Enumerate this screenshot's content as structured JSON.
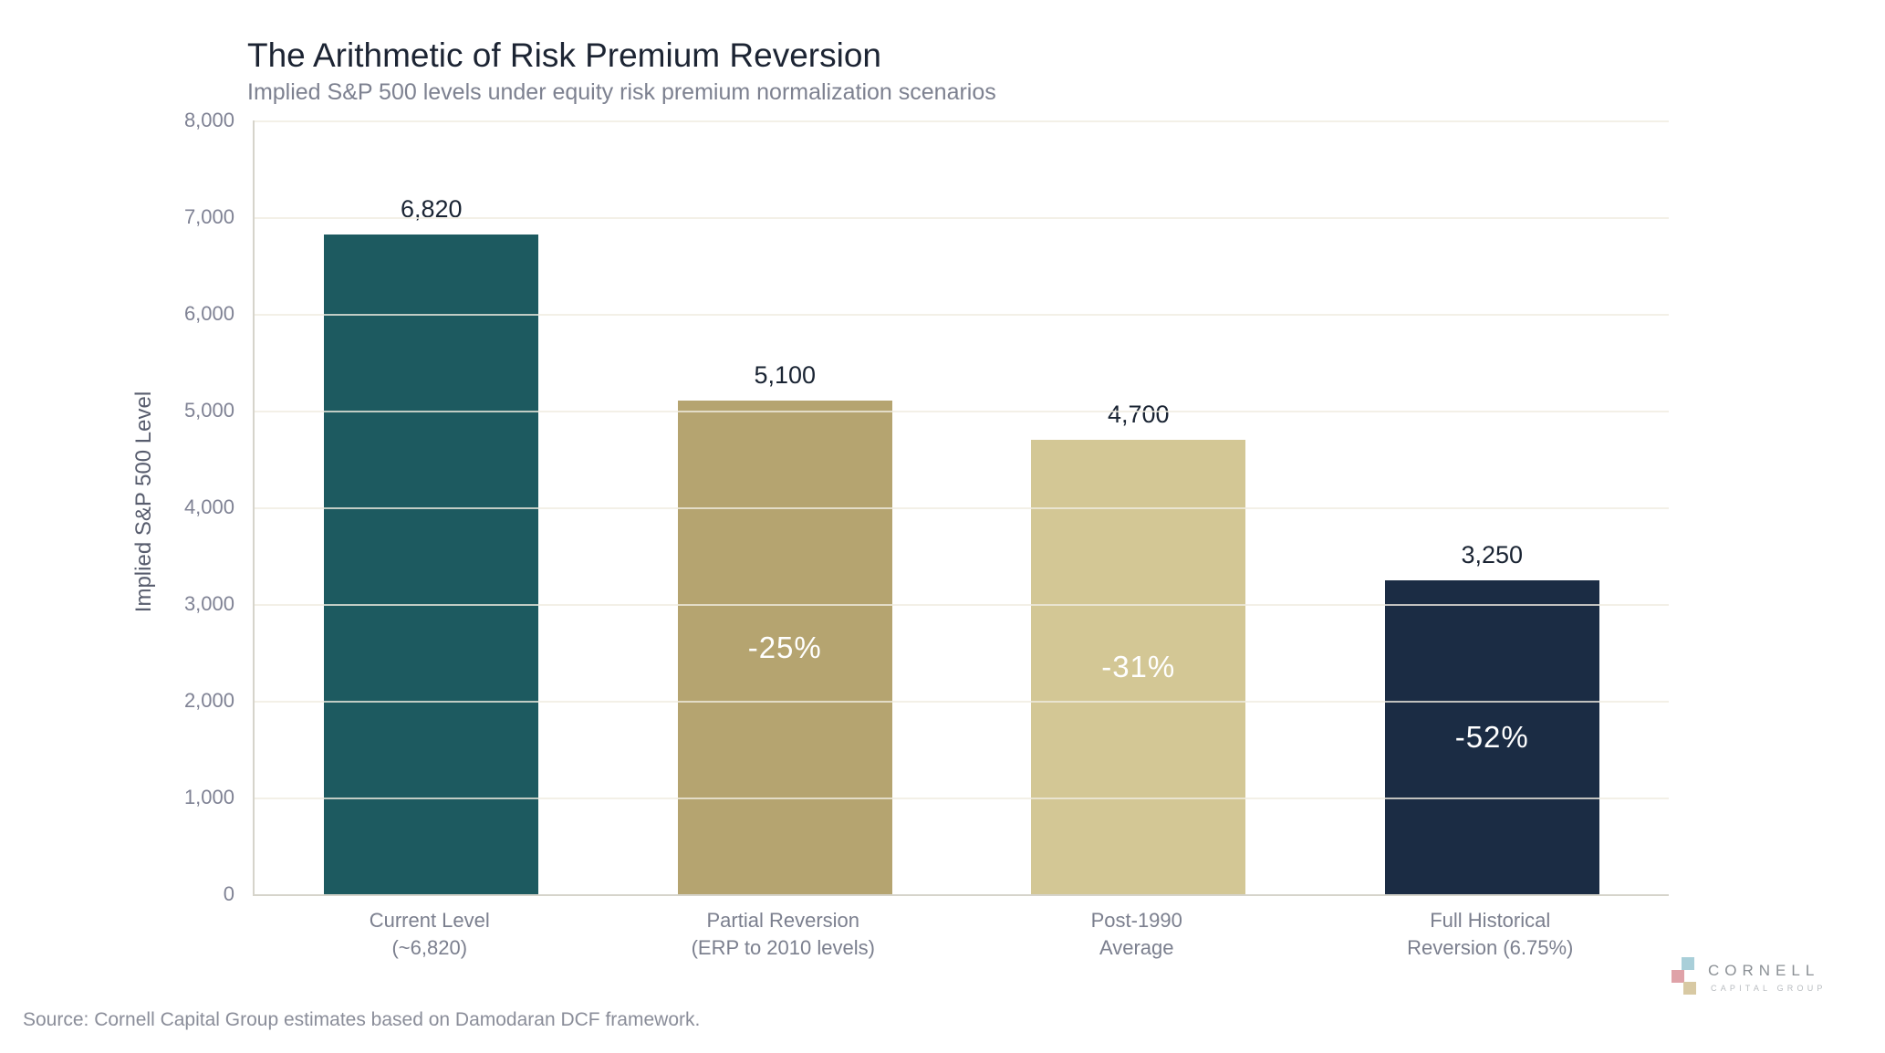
{
  "chart_data": {
    "type": "bar",
    "title": "The Arithmetic of Risk Premium Reversion",
    "subtitle": "Implied S&P 500 levels under equity risk premium normalization scenarios",
    "ylabel": "Implied S&P 500 Level",
    "ylim": [
      0,
      8000
    ],
    "ytick_step": 1000,
    "grid": true,
    "legend": "none",
    "categories": [
      [
        "Current Level",
        "(~6,820)"
      ],
      [
        "Partial Reversion",
        "(ERP to 2010 levels)"
      ],
      [
        "Post-1990",
        "Average"
      ],
      [
        "Full Historical",
        "Reversion (6.75%)"
      ]
    ],
    "values": [
      6820,
      5100,
      4700,
      3250
    ],
    "value_labels": [
      "6,820",
      "5,100",
      "4,700",
      "3,250"
    ],
    "percent_labels": [
      "",
      "-25%",
      "-31%",
      "-52%"
    ],
    "bar_colors": [
      "#1d5a60",
      "#b5a470",
      "#d3c795",
      "#1b2c44"
    ],
    "bar_names": [
      "current-level",
      "partial-reversion",
      "post-1990-average",
      "full-historical-reversion"
    ]
  },
  "source": {
    "text": "Source: Cornell Capital Group estimates based on Damodaran DCF framework."
  },
  "logo": {
    "wordmark": "CORNELL",
    "subtext": "CAPITAL GROUP",
    "square_colors": {
      "blue": "#a9cfd9",
      "pink": "#dfa2a8",
      "tan": "#d8c9a3"
    }
  },
  "colors": {
    "title": "#1c2433",
    "subtitle": "#7d8190",
    "axis_line": "#d6d4cb",
    "gridline": "#f0ece0",
    "tick_text": "#7f8294",
    "axis_title_text": "#575c6d",
    "value_label_text": "#1a2433",
    "percent_label_text": "#ffffff",
    "background": "#ffffff"
  }
}
